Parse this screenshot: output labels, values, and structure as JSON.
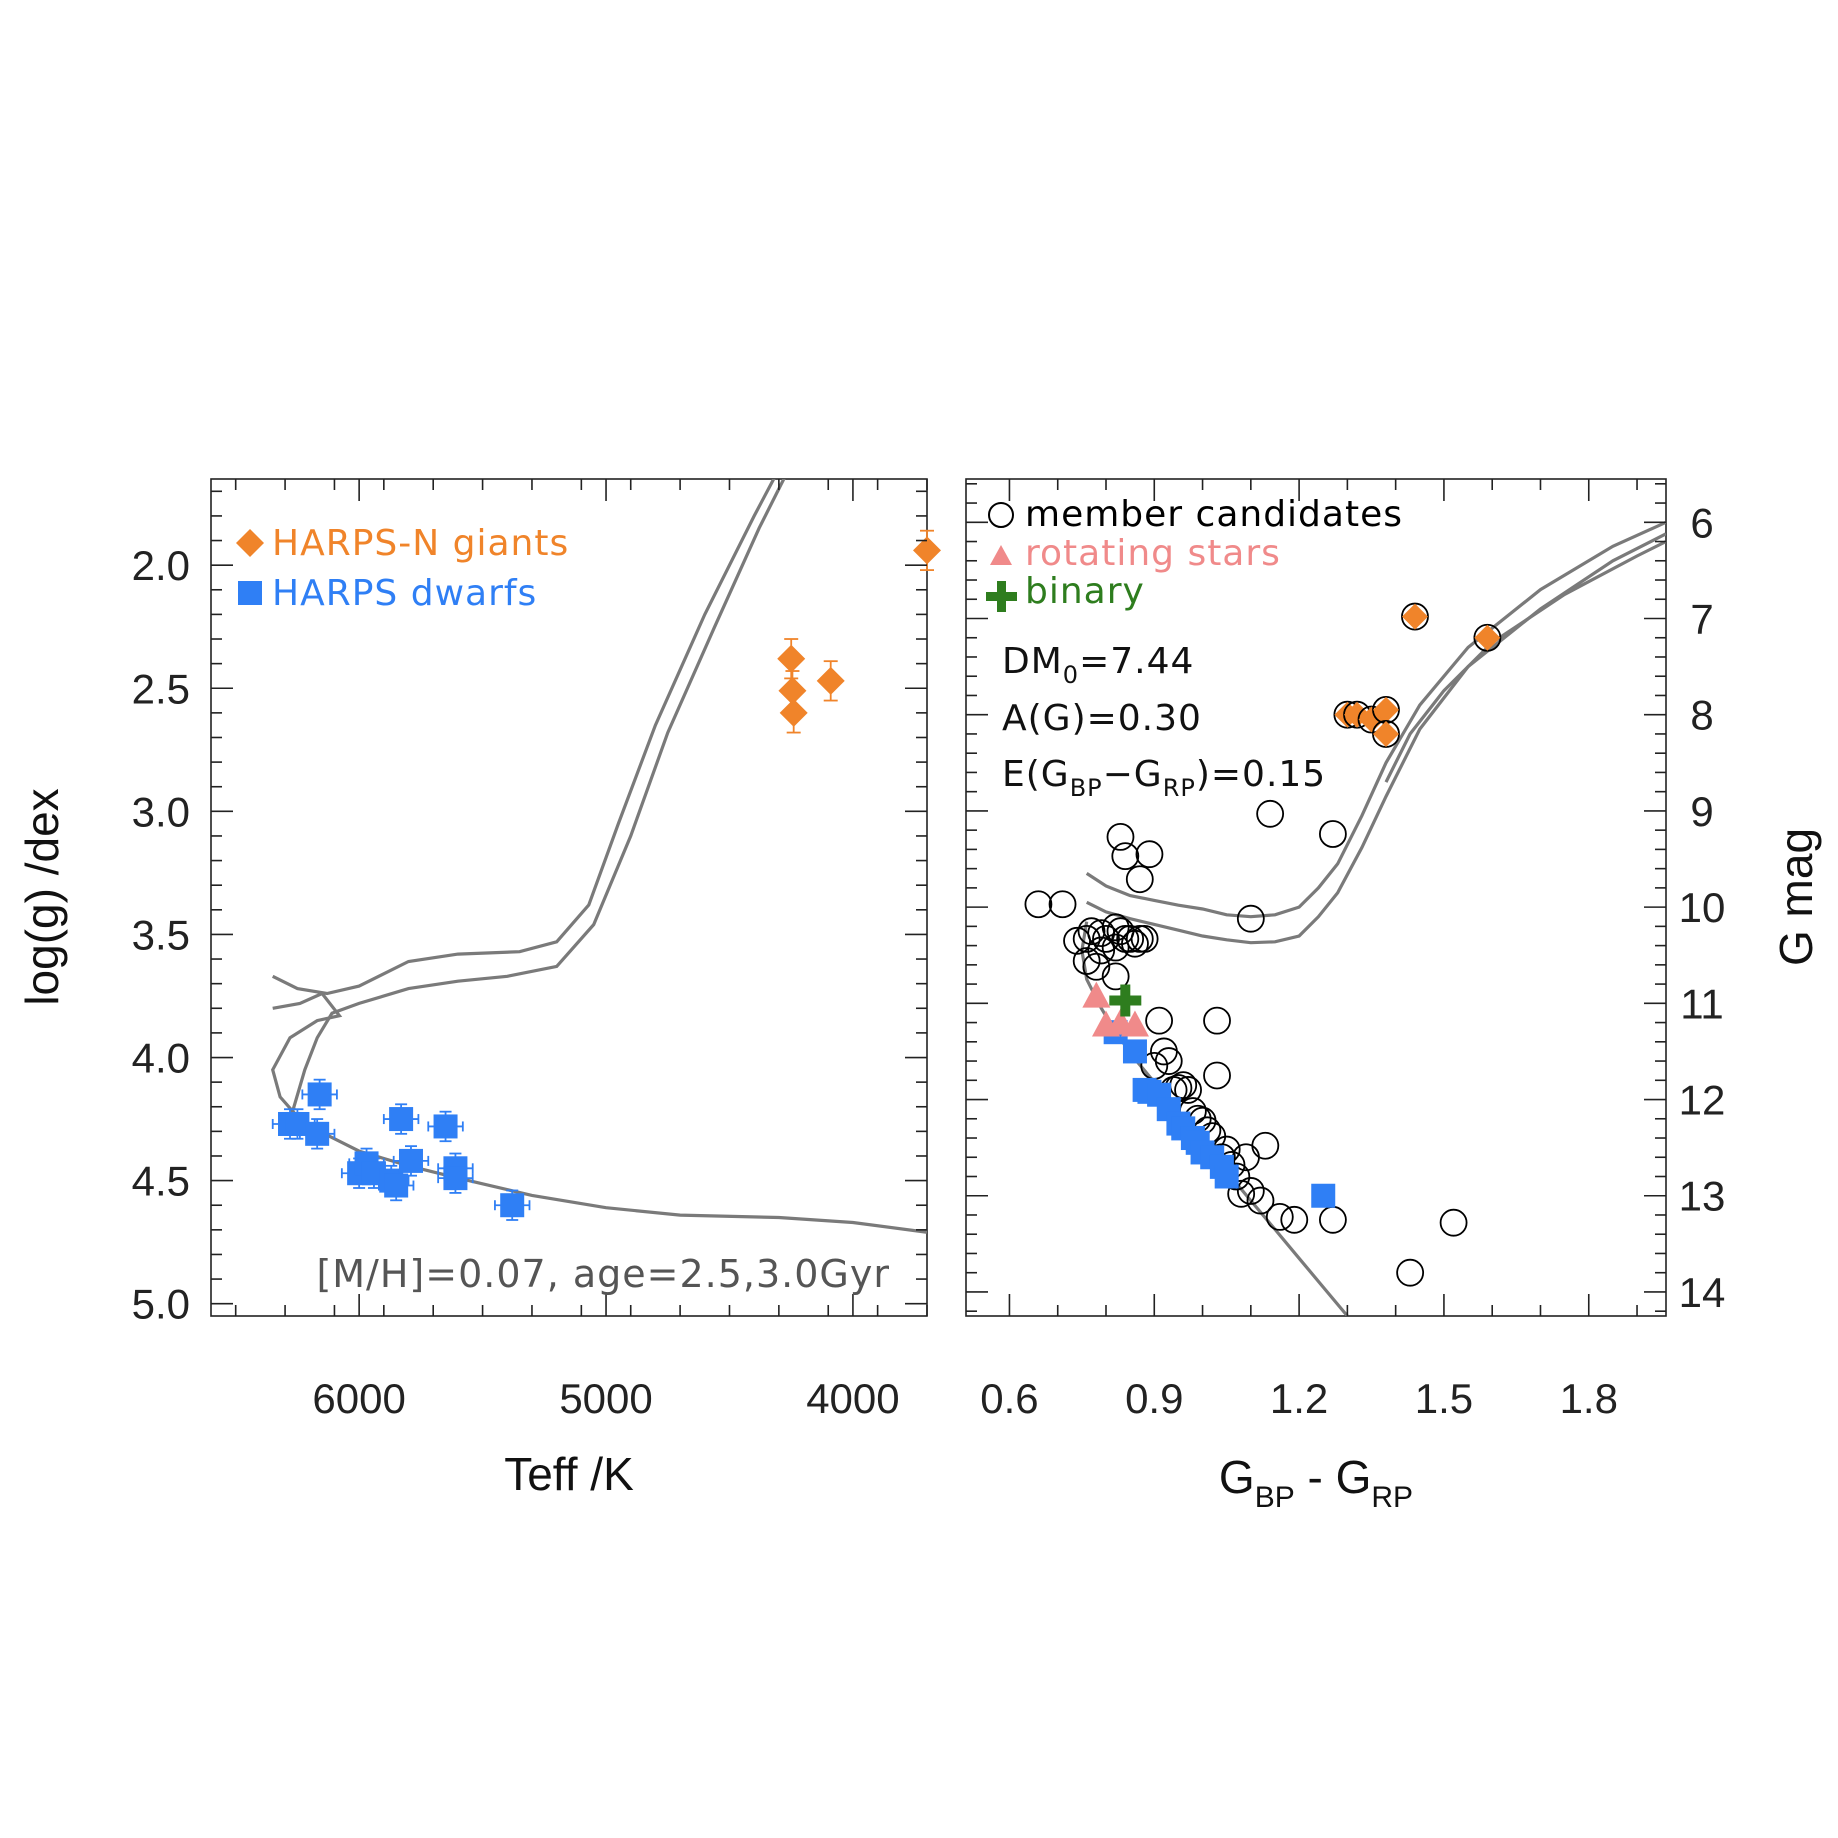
{
  "chart_data": [
    {
      "type": "scatter",
      "panel": "left",
      "xlabel": "Teff /K",
      "ylabel": "log(g) /dex",
      "xlim": [
        6600,
        3700
      ],
      "ylim": [
        5.05,
        1.65
      ],
      "xticks": [
        6000,
        5000,
        4000
      ],
      "yticks": [
        "2.0",
        "2.5",
        "3.0",
        "3.5",
        "4.0",
        "4.5",
        "5.0"
      ],
      "annotation": "[M/H]=0.07, age=2.5,3.0Gyr",
      "colors": {
        "giants": "#f0842a",
        "dwarfs": "#2f7ff5",
        "isochrone": "#7a7a7a"
      },
      "series": [
        {
          "name": "HARPS-N giants",
          "marker": "diamond",
          "points": [
            {
              "x": 4250,
              "y": 2.38,
              "ey": 0.08
            },
            {
              "x": 4245,
              "y": 2.51,
              "ey": 0.08
            },
            {
              "x": 4240,
              "y": 2.6,
              "ey": 0.08
            },
            {
              "x": 4090,
              "y": 2.47,
              "ey": 0.08
            },
            {
              "x": 3700,
              "y": 1.94,
              "ey": 0.08
            }
          ]
        },
        {
          "name": "HARPS dwarfs",
          "marker": "square",
          "points": [
            {
              "x": 6280,
              "y": 4.27,
              "ex": 70,
              "ey": 0.06
            },
            {
              "x": 6250,
              "y": 4.27,
              "ex": 70,
              "ey": 0.06
            },
            {
              "x": 6170,
              "y": 4.31,
              "ex": 70,
              "ey": 0.06
            },
            {
              "x": 6160,
              "y": 4.15,
              "ex": 70,
              "ey": 0.06
            },
            {
              "x": 6000,
              "y": 4.47,
              "ex": 70,
              "ey": 0.06
            },
            {
              "x": 5970,
              "y": 4.43,
              "ex": 70,
              "ey": 0.06
            },
            {
              "x": 5940,
              "y": 4.47,
              "ex": 70,
              "ey": 0.06
            },
            {
              "x": 5870,
              "y": 4.5,
              "ex": 70,
              "ey": 0.06
            },
            {
              "x": 5850,
              "y": 4.52,
              "ex": 70,
              "ey": 0.06
            },
            {
              "x": 5830,
              "y": 4.25,
              "ex": 70,
              "ey": 0.06
            },
            {
              "x": 5790,
              "y": 4.42,
              "ex": 70,
              "ey": 0.06
            },
            {
              "x": 5650,
              "y": 4.28,
              "ex": 70,
              "ey": 0.06
            },
            {
              "x": 5610,
              "y": 4.45,
              "ex": 70,
              "ey": 0.06
            },
            {
              "x": 5610,
              "y": 4.49,
              "ex": 70,
              "ey": 0.06
            },
            {
              "x": 5380,
              "y": 4.6,
              "ex": 70,
              "ey": 0.06
            }
          ]
        }
      ],
      "isochrones": [
        [
          [
            6350,
            3.67
          ],
          [
            6250,
            3.72
          ],
          [
            6130,
            3.74
          ],
          [
            6000,
            3.71
          ],
          [
            5800,
            3.61
          ],
          [
            5600,
            3.58
          ],
          [
            5350,
            3.57
          ],
          [
            5200,
            3.53
          ],
          [
            5070,
            3.38
          ],
          [
            4950,
            3.05
          ],
          [
            4800,
            2.65
          ],
          [
            4600,
            2.2
          ],
          [
            4400,
            1.8
          ],
          [
            4200,
            1.42
          ],
          [
            4100,
            1.25
          ]
        ],
        [
          [
            6350,
            3.8
          ],
          [
            6240,
            3.78
          ],
          [
            6150,
            3.74
          ],
          [
            6080,
            3.83
          ],
          [
            6170,
            3.85
          ],
          [
            6280,
            3.92
          ],
          [
            6350,
            4.05
          ],
          [
            6320,
            4.16
          ],
          [
            6250,
            4.24
          ],
          [
            6200,
            4.28
          ],
          [
            6000,
            4.38
          ],
          [
            5800,
            4.44
          ],
          [
            5600,
            4.49
          ],
          [
            5300,
            4.56
          ],
          [
            5000,
            4.61
          ],
          [
            4700,
            4.64
          ],
          [
            4300,
            4.65
          ],
          [
            4000,
            4.67
          ],
          [
            3700,
            4.71
          ]
        ],
        [
          [
            6300,
            4.3
          ],
          [
            6270,
            4.22
          ],
          [
            6220,
            4.05
          ],
          [
            6170,
            3.92
          ],
          [
            6110,
            3.82
          ],
          [
            6000,
            3.78
          ],
          [
            5800,
            3.72
          ],
          [
            5600,
            3.69
          ],
          [
            5400,
            3.67
          ],
          [
            5200,
            3.63
          ],
          [
            5050,
            3.46
          ],
          [
            4900,
            3.1
          ],
          [
            4750,
            2.68
          ],
          [
            4560,
            2.25
          ],
          [
            4380,
            1.85
          ],
          [
            4180,
            1.45
          ],
          [
            4080,
            1.25
          ]
        ]
      ]
    },
    {
      "type": "scatter",
      "panel": "right",
      "xlabel_main": "G",
      "xlabel_sub1": "BP",
      "xlabel_mid": " - G",
      "xlabel_sub2": "RP",
      "ylabel": "G mag",
      "xlim": [
        0.51,
        1.96
      ],
      "ylim": [
        14.25,
        5.55
      ],
      "xticks": [
        "0.6",
        "0.9",
        "1.2",
        "1.5",
        "1.8"
      ],
      "yticks": [
        "6",
        "7",
        "8",
        "9",
        "10",
        "11",
        "12",
        "13",
        "14"
      ],
      "annotations": {
        "dm_main": "DM",
        "dm_sub": "0",
        "dm_val": "=7.44",
        "ag": "A(G)=0.30",
        "e_pre": "E(G",
        "e_sub1": "BP",
        "e_mid": "−G",
        "e_sub2": "RP",
        "e_post": ")=0.15"
      },
      "colors": {
        "candidates": "#000000",
        "rotating": "#f08a8a",
        "binary": "#2e7d1e",
        "giants": "#f0842a",
        "dwarfs": "#2f7ff5"
      },
      "series": [
        {
          "name": "member candidates",
          "marker": "open-circle",
          "points": [
            [
              0.66,
              9.97
            ],
            [
              0.71,
              9.97
            ],
            [
              0.74,
              10.35
            ],
            [
              0.76,
              10.33
            ],
            [
              0.76,
              10.56
            ],
            [
              0.77,
              10.25
            ],
            [
              0.78,
              10.62
            ],
            [
              0.79,
              10.27
            ],
            [
              0.79,
              10.45
            ],
            [
              0.8,
              10.33
            ],
            [
              0.82,
              10.21
            ],
            [
              0.82,
              10.42
            ],
            [
              0.82,
              10.72
            ],
            [
              0.83,
              9.27
            ],
            [
              0.83,
              10.25
            ],
            [
              0.84,
              9.47
            ],
            [
              0.84,
              10.33
            ],
            [
              0.85,
              10.33
            ],
            [
              0.86,
              10.38
            ],
            [
              0.87,
              10.33
            ],
            [
              0.87,
              9.71
            ],
            [
              0.88,
              10.33
            ],
            [
              0.89,
              9.45
            ],
            [
              0.9,
              11.65
            ],
            [
              0.91,
              11.18
            ],
            [
              0.92,
              11.5
            ],
            [
              0.93,
              11.6
            ],
            [
              0.94,
              11.9
            ],
            [
              0.95,
              11.88
            ],
            [
              0.96,
              11.85
            ],
            [
              0.97,
              11.9
            ],
            [
              0.98,
              12.12
            ],
            [
              0.99,
              12.2
            ],
            [
              1.0,
              12.22
            ],
            [
              1.01,
              12.32
            ],
            [
              1.02,
              12.38
            ],
            [
              1.03,
              11.18
            ],
            [
              1.03,
              11.75
            ],
            [
              1.04,
              12.6
            ],
            [
              1.05,
              12.52
            ],
            [
              1.06,
              12.68
            ],
            [
              1.07,
              12.8
            ],
            [
              1.08,
              12.98
            ],
            [
              1.09,
              12.6
            ],
            [
              1.1,
              12.95
            ],
            [
              1.1,
              10.12
            ],
            [
              1.12,
              13.05
            ],
            [
              1.13,
              12.48
            ],
            [
              1.14,
              9.03
            ],
            [
              1.16,
              13.22
            ],
            [
              1.19,
              13.25
            ],
            [
              1.27,
              13.25
            ],
            [
              1.27,
              9.24
            ],
            [
              1.43,
              13.8
            ],
            [
              1.52,
              13.28
            ]
          ]
        },
        {
          "name": "rotating stars",
          "marker": "triangle",
          "points": [
            [
              0.78,
              10.92
            ],
            [
              0.8,
              11.22
            ],
            [
              0.83,
              11.2
            ],
            [
              0.86,
              11.22
            ]
          ]
        },
        {
          "name": "binary",
          "marker": "plus",
          "points": [
            [
              0.84,
              10.97
            ]
          ]
        },
        {
          "name": "HARPS-N giants",
          "marker": "diamond",
          "points": [
            [
              1.3,
              8.0
            ],
            [
              1.32,
              8.0
            ],
            [
              1.35,
              8.05
            ],
            [
              1.38,
              7.95
            ],
            [
              1.38,
              8.2
            ],
            [
              1.44,
              6.98
            ],
            [
              1.59,
              7.2
            ]
          ]
        },
        {
          "name": "HARPS dwarfs",
          "marker": "square",
          "points": [
            [
              0.82,
              11.3
            ],
            [
              0.86,
              11.5
            ],
            [
              0.88,
              11.9
            ],
            [
              0.89,
              11.92
            ],
            [
              0.91,
              11.95
            ],
            [
              0.93,
              12.1
            ],
            [
              0.95,
              12.25
            ],
            [
              0.96,
              12.3
            ],
            [
              0.98,
              12.4
            ],
            [
              0.99,
              12.45
            ],
            [
              1.0,
              12.55
            ],
            [
              1.02,
              12.6
            ],
            [
              1.04,
              12.7
            ],
            [
              1.05,
              12.8
            ],
            [
              1.25,
              13.0
            ]
          ]
        }
      ],
      "isochrones": [
        [
          [
            0.76,
            9.65
          ],
          [
            0.8,
            9.78
          ],
          [
            0.85,
            9.88
          ],
          [
            0.9,
            9.93
          ],
          [
            0.95,
            9.98
          ],
          [
            1.0,
            10.02
          ],
          [
            1.05,
            10.08
          ],
          [
            1.1,
            10.1
          ],
          [
            1.15,
            10.08
          ],
          [
            1.2,
            10.0
          ],
          [
            1.24,
            9.8
          ],
          [
            1.28,
            9.55
          ],
          [
            1.33,
            9.05
          ],
          [
            1.38,
            8.5
          ],
          [
            1.45,
            7.9
          ],
          [
            1.55,
            7.3
          ],
          [
            1.7,
            6.7
          ],
          [
            1.85,
            6.25
          ],
          [
            1.96,
            6.0
          ]
        ],
        [
          [
            0.76,
            9.95
          ],
          [
            0.8,
            10.05
          ],
          [
            0.85,
            10.12
          ],
          [
            0.9,
            10.18
          ],
          [
            0.95,
            10.24
          ],
          [
            1.0,
            10.3
          ],
          [
            1.05,
            10.34
          ],
          [
            1.1,
            10.37
          ],
          [
            1.15,
            10.36
          ],
          [
            1.2,
            10.3
          ],
          [
            1.24,
            10.1
          ],
          [
            1.28,
            9.85
          ],
          [
            1.33,
            9.38
          ],
          [
            1.38,
            8.85
          ],
          [
            1.45,
            8.15
          ],
          [
            1.55,
            7.5
          ],
          [
            1.7,
            6.9
          ],
          [
            1.85,
            6.4
          ],
          [
            1.96,
            6.12
          ]
        ],
        [
          [
            0.76,
            10.15
          ],
          [
            0.75,
            10.45
          ],
          [
            0.76,
            10.75
          ],
          [
            0.79,
            11.05
          ],
          [
            0.82,
            11.3
          ],
          [
            0.86,
            11.58
          ],
          [
            0.9,
            11.82
          ],
          [
            0.95,
            12.15
          ],
          [
            1.0,
            12.45
          ],
          [
            1.05,
            12.75
          ],
          [
            1.1,
            13.05
          ],
          [
            1.15,
            13.35
          ],
          [
            1.2,
            13.65
          ],
          [
            1.25,
            13.95
          ],
          [
            1.3,
            14.25
          ]
        ],
        [
          [
            1.38,
            8.7
          ],
          [
            1.43,
            8.2
          ],
          [
            1.5,
            7.75
          ],
          [
            1.6,
            7.25
          ],
          [
            1.75,
            6.75
          ],
          [
            1.9,
            6.35
          ],
          [
            1.96,
            6.2
          ]
        ]
      ]
    }
  ],
  "legend_left": {
    "giants_label": "HARPS-N giants",
    "dwarfs_label": "HARPS dwarfs"
  },
  "legend_right": {
    "candidates_label": "member candidates",
    "rotating_label": "rotating stars",
    "binary_label": "binary"
  }
}
